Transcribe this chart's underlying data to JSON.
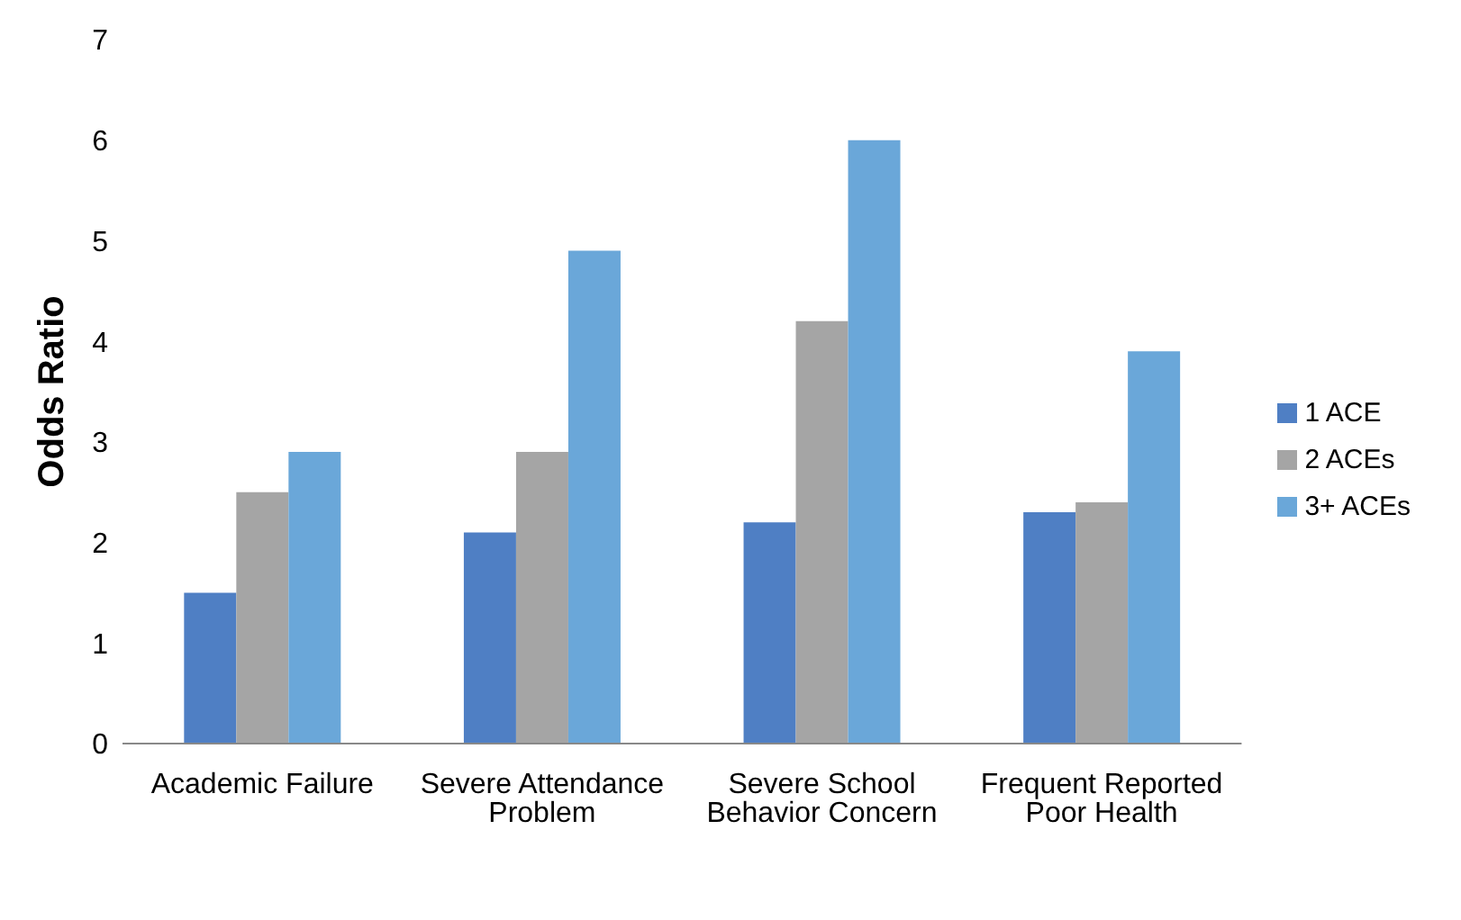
{
  "chart_data": {
    "type": "bar",
    "ylabel": "Odds Ratio",
    "categories": [
      "Academic Failure",
      "Severe Attendance Problem",
      "Severe School Behavior Concern",
      "Frequent Reported Poor Health"
    ],
    "series": [
      {
        "name": "1 ACE",
        "color": "#4f7fc4",
        "values": [
          1.5,
          2.1,
          2.2,
          2.3
        ]
      },
      {
        "name": "2 ACEs",
        "color": "#a5a5a5",
        "values": [
          2.5,
          2.9,
          4.2,
          2.4
        ]
      },
      {
        "name": "3+ ACEs",
        "color": "#6aa7d9",
        "values": [
          2.9,
          4.9,
          6.0,
          3.9
        ]
      }
    ],
    "ylim": [
      0,
      7
    ],
    "yticks": [
      0,
      1,
      2,
      3,
      4,
      5,
      6,
      7
    ],
    "grid": false,
    "legend": "right"
  }
}
